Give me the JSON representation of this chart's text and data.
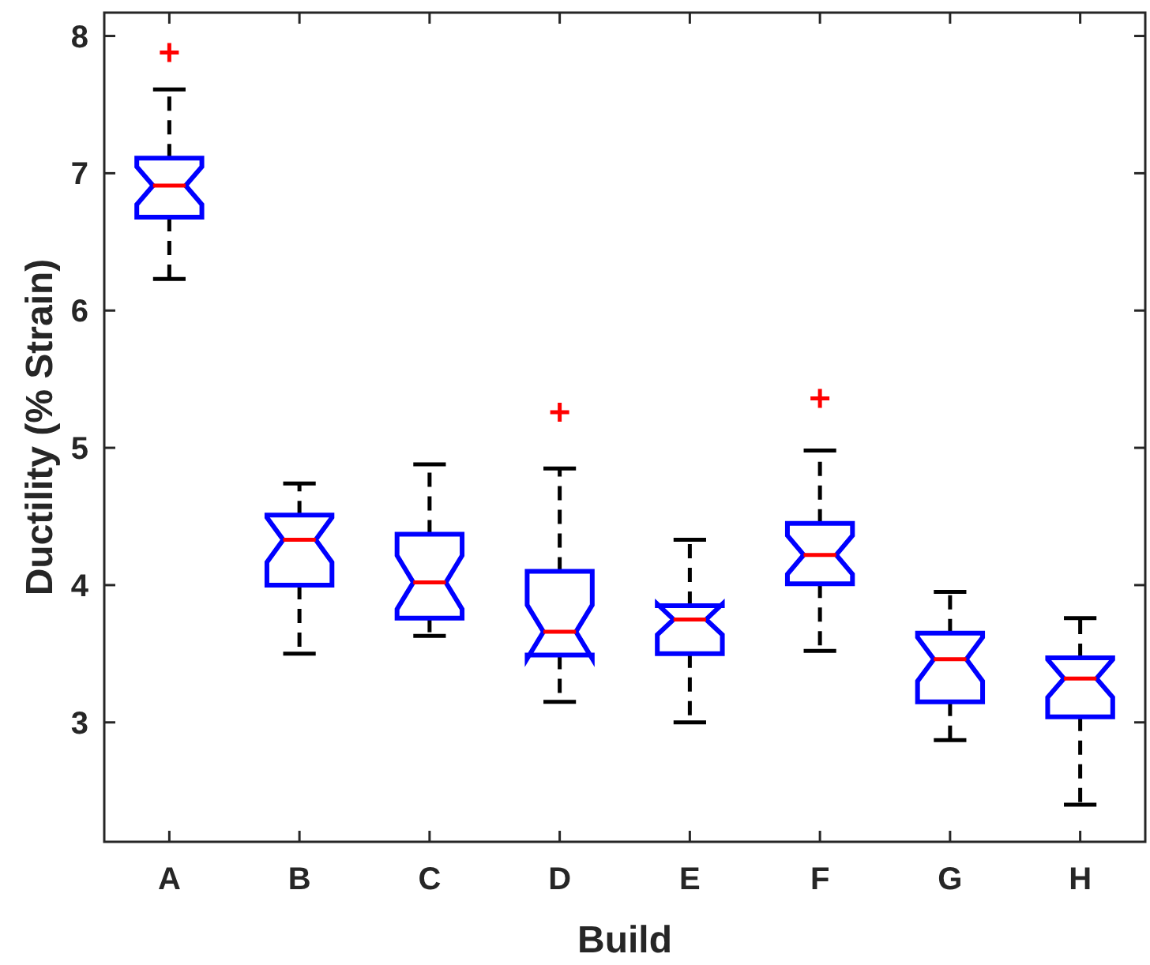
{
  "chart_data": {
    "type": "box",
    "xlabel": "Build",
    "ylabel": "Ductility (% Strain)",
    "categories": [
      "A",
      "B",
      "C",
      "D",
      "E",
      "F",
      "G",
      "H"
    ],
    "ylim": [
      2.13,
      8.17
    ],
    "yticks": [
      3,
      4,
      5,
      6,
      7,
      8
    ],
    "grid": false,
    "color": "#0000ff",
    "boxes": [
      {
        "low": 6.23,
        "q1": 6.68,
        "median": 6.91,
        "q3": 7.11,
        "high": 7.61,
        "outliers": [
          7.88
        ]
      },
      {
        "low": 3.5,
        "q1": 4.0,
        "median": 4.33,
        "q3": 4.51,
        "high": 4.74
      },
      {
        "low": 3.63,
        "q1": 3.76,
        "median": 4.02,
        "q3": 4.37,
        "high": 4.88
      },
      {
        "low": 3.15,
        "q1": 3.49,
        "median": 3.66,
        "q3": 4.1,
        "high": 4.85,
        "outliers": [
          5.26
        ]
      },
      {
        "low": 3.0,
        "q1": 3.5,
        "median": 3.75,
        "q3": 3.85,
        "high": 4.33
      },
      {
        "low": 3.52,
        "q1": 4.01,
        "median": 4.22,
        "q3": 4.45,
        "high": 4.98,
        "outliers": [
          5.36
        ]
      },
      {
        "low": 2.87,
        "q1": 3.15,
        "median": 3.46,
        "q3": 3.65,
        "high": 3.95
      },
      {
        "low": 2.4,
        "q1": 3.04,
        "median": 3.32,
        "q3": 3.47,
        "high": 3.76
      }
    ]
  }
}
